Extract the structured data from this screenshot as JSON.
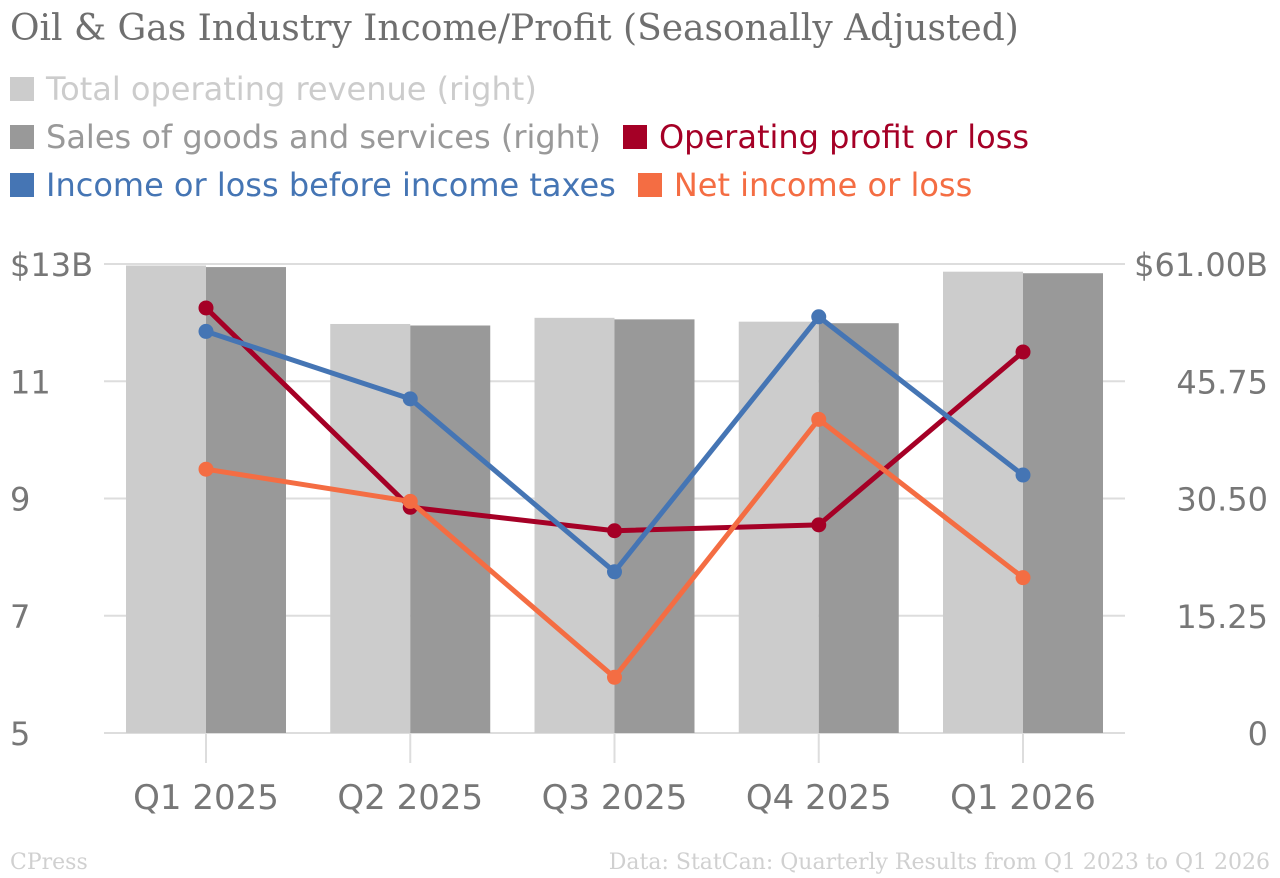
{
  "chart_data": {
    "type": "bar+line",
    "title": "Oil & Gas Industry Income/Profit (Seasonally Adjusted)",
    "categories": [
      "Q1 2025",
      "Q2 2025",
      "Q3 2025",
      "Q4 2025",
      "Q1 2026"
    ],
    "left_axis": {
      "ticks": [
        "$13B",
        "11",
        "9",
        "7",
        "5"
      ],
      "ylim": [
        5,
        13
      ]
    },
    "right_axis": {
      "ticks": [
        "$61.00B",
        "45.75",
        "30.50",
        "15.25",
        "0"
      ],
      "ylim": [
        0,
        61
      ]
    },
    "bar_series": [
      {
        "name": "Total operating revenue (right)",
        "color": "#cccccc",
        "axis": "right",
        "values": [
          60.8,
          53.2,
          54.0,
          53.5,
          60.0
        ]
      },
      {
        "name": "Sales of goods and services (right)",
        "color": "#999999",
        "axis": "right",
        "values": [
          60.6,
          53.0,
          53.8,
          53.3,
          59.8
        ]
      }
    ],
    "line_series": [
      {
        "name": "Operating profit or loss",
        "color": "#a50026",
        "axis": "left",
        "values": [
          12.25,
          8.85,
          8.45,
          8.55,
          11.5
        ]
      },
      {
        "name": "Income or loss before income taxes",
        "color": "#4575b4",
        "axis": "left",
        "values": [
          11.85,
          10.7,
          7.75,
          12.1,
          9.4
        ]
      },
      {
        "name": "Net income or loss",
        "color": "#f46d43",
        "axis": "left",
        "values": [
          9.5,
          8.95,
          5.95,
          10.35,
          7.65
        ]
      }
    ],
    "grid": true,
    "legend_position": "top"
  },
  "footer": {
    "left": "CPress",
    "right": "Data: StatCan: Quarterly Results from Q1 2023 to Q1 2026"
  }
}
